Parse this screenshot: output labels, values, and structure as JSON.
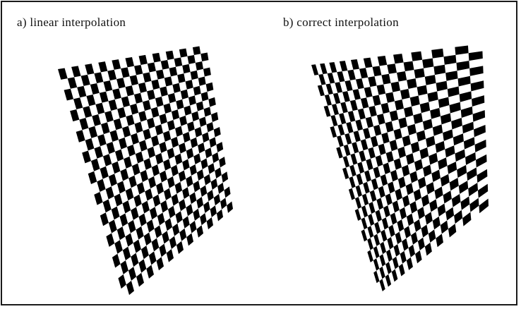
{
  "figure": {
    "panel_a": {
      "caption": "a) linear interpolation",
      "rows": 22,
      "cols": 22,
      "interpolation": "linear"
    },
    "panel_b": {
      "caption": "b) correct interpolation",
      "rows": 22,
      "cols": 22,
      "interpolation": "perspective"
    },
    "colors": {
      "dark": "#000000",
      "light": "#ffffff",
      "border": "#1a1a1a"
    }
  }
}
